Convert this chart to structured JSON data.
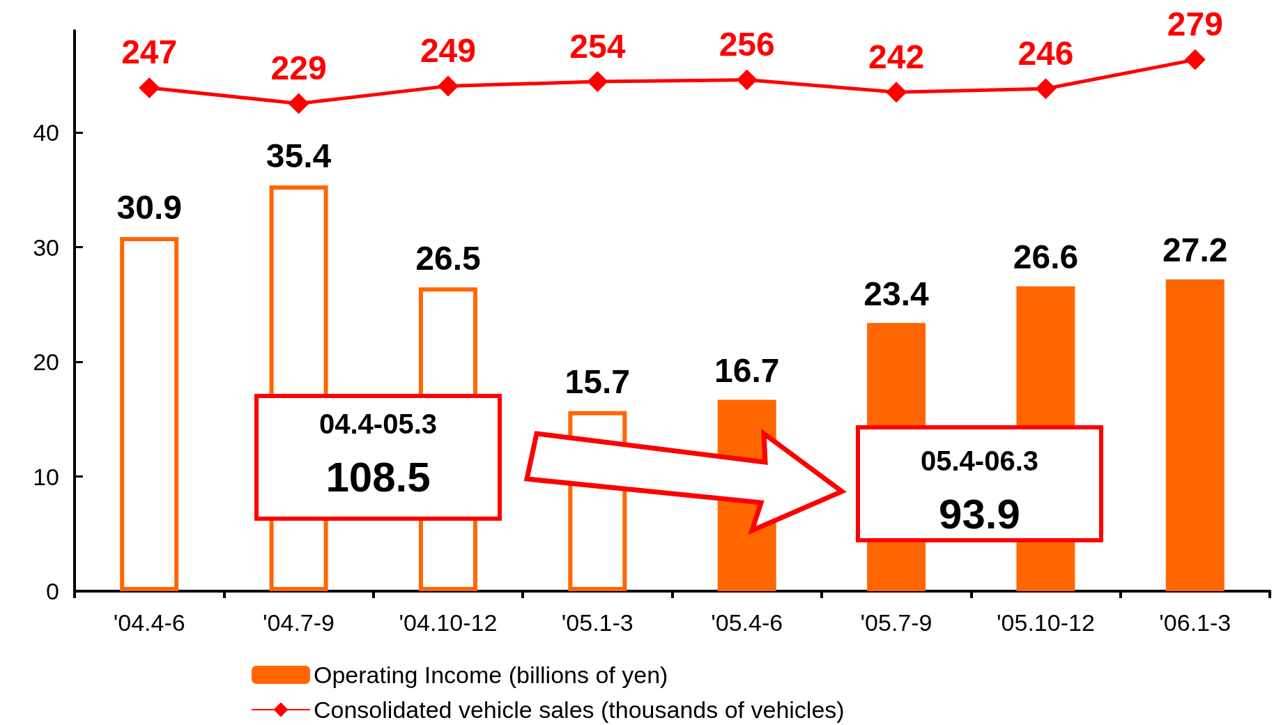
{
  "chart_data": {
    "type": "bar",
    "categories": [
      "'04.4-6",
      "'04.7-9",
      "'04.10-12",
      "'05.1-3",
      "'05.4-6",
      "'05.7-9",
      "'05.10-12",
      "'06.1-3"
    ],
    "series": [
      {
        "name": "Operating Income (billions of yen)",
        "color": "#ff6600",
        "colors": [
          "#ffffff",
          "#ffffff",
          "#ffffff",
          "#ffffff",
          "#ff6600",
          "#ff6600",
          "#ff6600",
          "#ff6600"
        ],
        "values": [
          30.9,
          35.4,
          26.5,
          15.7,
          16.7,
          23.4,
          26.6,
          27.2
        ]
      },
      {
        "name": "Consolidated vehicle sales (thousands of vehicles)",
        "type": "line",
        "axis": "y2",
        "color": "#ff0000",
        "values": [
          247,
          229,
          249,
          254,
          256,
          242,
          246,
          279
        ]
      }
    ],
    "ylim": [
      0,
      48.9
    ],
    "yticks": [
      0,
      10,
      20,
      30,
      40
    ],
    "y2lim": [
      -326,
      312
    ],
    "data_labels": true,
    "grid": false,
    "legend": "bottom",
    "marker": "diamond",
    "line_style": "solid",
    "annotations": [
      "04.4-05.3",
      "108.5",
      "05.4-06.3",
      "93.9"
    ]
  }
}
